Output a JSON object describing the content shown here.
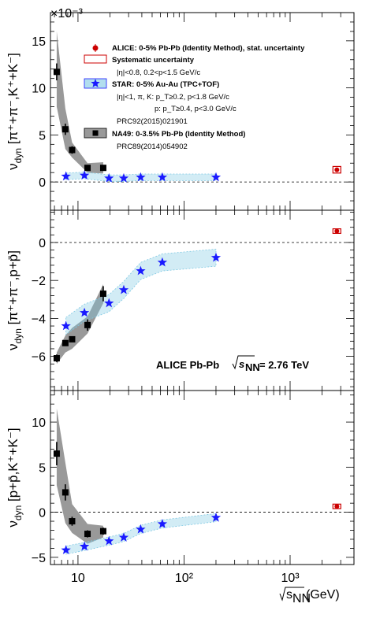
{
  "chart_data": {
    "type": "scatter",
    "x_scale": "log",
    "xlim": [
      5.5,
      4000
    ],
    "x_ticks": [
      {
        "v": 10,
        "label": "10"
      },
      {
        "v": 100,
        "label": "10²"
      },
      {
        "v": 1000,
        "label": "10³"
      }
    ],
    "xlabel": "√s_NN (GeV)",
    "xlabel_root": "s",
    "xlabel_sub": "NN",
    "xlabel_unit": " (GeV)",
    "exponent_label": "×10⁻³",
    "annotation": {
      "text": "ALICE Pb-Pb",
      "root": "s",
      "sub": "NN",
      "value": "= 2.76 TeV"
    },
    "legend": [
      {
        "text": "ALICE: 0-5% Pb-Pb (Identity Method), stat. uncertainty",
        "marker": "red-circle"
      },
      {
        "text": "Systematic uncertainty",
        "marker": "red-box"
      },
      {
        "text": "|η|<0.8, 0.2<p<1.5 GeV/c",
        "marker": "none"
      },
      {
        "text": "STAR:  0-5% Au-Au (TPC+TOF)",
        "marker": "blue-star-box"
      },
      {
        "text": "|η|<1,  π, K: p_T≥0.2,  p<1.8 GeV/c",
        "marker": "none"
      },
      {
        "text": "p:  p_T≥0.4,  p<3.0 GeV/c",
        "marker": "none"
      },
      {
        "text": "PRC92(2015)021901",
        "marker": "none"
      },
      {
        "text": "NA49:  0-3.5% Pb-Pb (Identity Method)",
        "marker": "black-square-box"
      },
      {
        "text": "PRC89(2014)054902",
        "marker": "none"
      }
    ],
    "colors": {
      "alice": "#cc0000",
      "star": "#1a1aff",
      "star_band": "#7ec8e3",
      "na49": "#000000",
      "na49_band": "#999999"
    },
    "panels": [
      {
        "ylabel": "ν_dyn [π⁺+π⁻,K⁺+K⁻]",
        "ylabel_main": "ν",
        "ylabel_sub": "dyn",
        "ylabel_rest": " [π⁺+π⁻,K⁺+K⁻]",
        "ylim": [
          -3,
          18
        ],
        "y_ticks": [
          0,
          5,
          10,
          15
        ],
        "alice": [
          {
            "x": 2760,
            "y": 1.3,
            "err": 0.1,
            "sys": 0.35
          }
        ],
        "na49": [
          {
            "x": 6.3,
            "y": 11.7,
            "err": 0.9
          },
          {
            "x": 7.6,
            "y": 5.6,
            "err": 0.6
          },
          {
            "x": 8.8,
            "y": 3.4,
            "err": 0.4
          },
          {
            "x": 12.3,
            "y": 1.5,
            "err": 0.3
          },
          {
            "x": 17.3,
            "y": 1.5,
            "err": 0.3
          }
        ],
        "na49_band": [
          [
            6.3,
            8.0,
            16.0
          ],
          [
            7.6,
            3.5,
            7.8
          ],
          [
            8.8,
            2.6,
            4.2
          ],
          [
            12.3,
            1.0,
            2.0
          ],
          [
            17.3,
            0.9,
            2.1
          ]
        ],
        "star": [
          {
            "x": 7.7,
            "y": 0.6
          },
          {
            "x": 11.5,
            "y": 0.7
          },
          {
            "x": 19.6,
            "y": 0.4
          },
          {
            "x": 27,
            "y": 0.4
          },
          {
            "x": 39,
            "y": 0.5
          },
          {
            "x": 62.4,
            "y": 0.5
          },
          {
            "x": 200,
            "y": 0.5
          }
        ],
        "star_band_halfwidth": 0.35
      },
      {
        "ylabel": "ν_dyn [π⁺+π⁻,p+p̄]",
        "ylabel_main": "ν",
        "ylabel_sub": "dyn",
        "ylabel_rest": " [π⁺+π⁻,p+p̄]",
        "ylim": [
          -7.8,
          1.7
        ],
        "y_ticks": [
          -6,
          -4,
          -2,
          0
        ],
        "alice": [
          {
            "x": 2760,
            "y": 0.6,
            "err": 0.05,
            "sys": 0.12
          }
        ],
        "na49": [
          {
            "x": 6.3,
            "y": -6.1,
            "err": 0.2
          },
          {
            "x": 7.6,
            "y": -5.3,
            "err": 0.15
          },
          {
            "x": 8.8,
            "y": -5.1,
            "err": 0.15
          },
          {
            "x": 12.3,
            "y": -4.35,
            "err": 0.3
          },
          {
            "x": 17.3,
            "y": -2.7,
            "err": 0.4
          }
        ],
        "na49_band": [
          [
            6.3,
            -6.4,
            -5.8
          ],
          [
            7.6,
            -5.8,
            -4.9
          ],
          [
            8.8,
            -5.6,
            -4.5
          ],
          [
            12.3,
            -4.8,
            -3.9
          ],
          [
            17.3,
            -3.2,
            -2.2
          ]
        ],
        "star": [
          {
            "x": 7.7,
            "y": -4.4
          },
          {
            "x": 11.5,
            "y": -3.7
          },
          {
            "x": 19.6,
            "y": -3.2
          },
          {
            "x": 27,
            "y": -2.5
          },
          {
            "x": 39,
            "y": -1.5
          },
          {
            "x": 62.4,
            "y": -1.05
          },
          {
            "x": 200,
            "y": -0.8
          }
        ],
        "star_band_halfwidth": 0.45
      },
      {
        "ylabel": "ν_dyn [p+p̄,K⁺+K⁻]",
        "ylabel_main": "ν",
        "ylabel_sub": "dyn",
        "ylabel_rest": " [p+p̄,K⁺+K⁻]",
        "ylim": [
          -5.8,
          13.5
        ],
        "y_ticks": [
          -5,
          0,
          5,
          10
        ],
        "alice": [
          {
            "x": 2760,
            "y": 0.65,
            "err": 0.2,
            "sys": 0.25
          }
        ],
        "na49": [
          {
            "x": 6.3,
            "y": 6.5,
            "err": 1.3
          },
          {
            "x": 7.6,
            "y": 2.2,
            "err": 0.9
          },
          {
            "x": 8.8,
            "y": -1.0,
            "err": 0.5
          },
          {
            "x": 12.3,
            "y": -2.4,
            "err": 0.4
          },
          {
            "x": 17.3,
            "y": -2.1,
            "err": 0.4
          }
        ],
        "na49_band": [
          [
            6.3,
            3.0,
            11.5
          ],
          [
            7.6,
            -1.2,
            5.5
          ],
          [
            8.8,
            -2.3,
            0.9
          ],
          [
            12.3,
            -3.5,
            -1.3
          ],
          [
            17.3,
            -2.8,
            -1.5
          ]
        ],
        "star": [
          {
            "x": 7.7,
            "y": -4.2
          },
          {
            "x": 11.5,
            "y": -3.8
          },
          {
            "x": 19.6,
            "y": -3.2
          },
          {
            "x": 27,
            "y": -2.8
          },
          {
            "x": 39,
            "y": -1.9
          },
          {
            "x": 62.4,
            "y": -1.3
          },
          {
            "x": 200,
            "y": -0.6
          }
        ],
        "star_band_halfwidth": 0.45
      }
    ]
  }
}
